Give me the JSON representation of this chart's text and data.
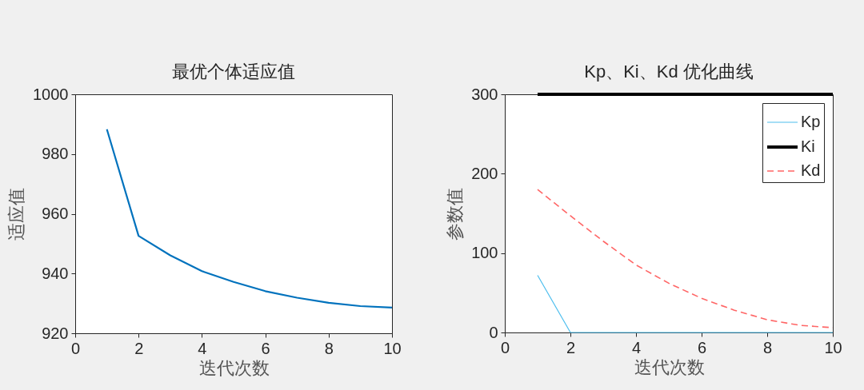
{
  "chart_data": [
    {
      "type": "line",
      "title": "最优个体适应值",
      "xlabel": "迭代次数",
      "ylabel": "适应值",
      "x": [
        1,
        2,
        3,
        4,
        5,
        6,
        7,
        8,
        9,
        10
      ],
      "series": [
        {
          "color": "#0072bd",
          "values": [
            988.3,
            952.6,
            946.1,
            940.8,
            937.2,
            934.1,
            931.9,
            930.2,
            929.1,
            928.6
          ]
        }
      ],
      "xlim": [
        0,
        10
      ],
      "ylim": [
        920,
        1000
      ],
      "xticks": [
        0,
        2,
        4,
        6,
        8,
        10
      ],
      "yticks": [
        920,
        940,
        960,
        980,
        1000
      ],
      "grid": false,
      "legend": false,
      "line_style": "solid"
    },
    {
      "type": "line",
      "title": "Kp、Ki、Kd 优化曲线",
      "xlabel": "迭代次数",
      "ylabel": "参数值",
      "x": [
        1,
        2,
        3,
        4,
        5,
        6,
        7,
        8,
        9,
        10
      ],
      "series": [
        {
          "name": "Kp",
          "color": "#4dbeee",
          "values": [
            72,
            0,
            0,
            0,
            0,
            0,
            0,
            0,
            0,
            0
          ]
        },
        {
          "name": "Ki",
          "color": "#000000",
          "values": [
            300,
            300,
            300,
            300,
            300,
            300,
            300,
            300,
            300,
            300
          ]
        },
        {
          "name": "Kd",
          "color": "#ff6666",
          "line_style": "dashed",
          "values": [
            180,
            147,
            115,
            85,
            62,
            43,
            28,
            16,
            9,
            6
          ]
        }
      ],
      "xlim": [
        0,
        10
      ],
      "ylim": [
        0,
        300
      ],
      "xticks": [
        0,
        2,
        4,
        6,
        8,
        10
      ],
      "yticks": [
        0,
        100,
        200,
        300
      ],
      "grid": false,
      "legend": "top right",
      "line_style": "solid"
    }
  ]
}
